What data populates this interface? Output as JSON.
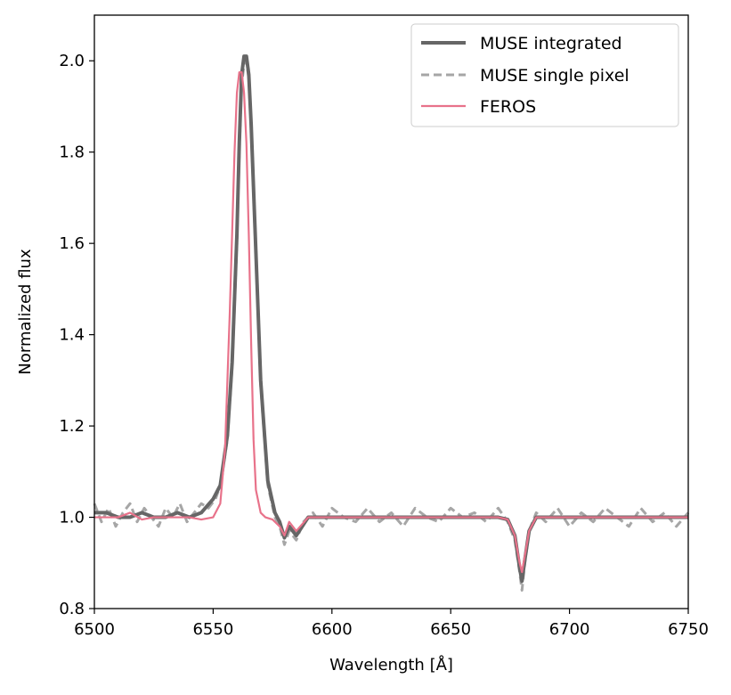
{
  "chart_data": {
    "type": "line",
    "xlabel": "Wavelength [Å]",
    "ylabel": "Normalized flux",
    "xlim": [
      6500,
      6750
    ],
    "ylim": [
      0.8,
      2.1
    ],
    "xticks": [
      6500,
      6550,
      6600,
      6650,
      6700,
      6750
    ],
    "yticks": [
      0.8,
      1.0,
      1.2,
      1.4,
      1.6,
      1.8,
      2.0
    ],
    "xtick_labels": [
      "6500",
      "6550",
      "6600",
      "6650",
      "6700",
      "6750"
    ],
    "ytick_labels": [
      "0.8",
      "1.0",
      "1.2",
      "1.4",
      "1.6",
      "1.8",
      "2.0"
    ],
    "grid": false,
    "legend_position": "upper right",
    "series": [
      {
        "name": "MUSE integrated",
        "color": "#666666",
        "style": "solid",
        "x": [
          6500,
          6505,
          6510,
          6515,
          6520,
          6525,
          6530,
          6535,
          6540,
          6545,
          6550,
          6553,
          6556,
          6558,
          6560,
          6561,
          6562,
          6563,
          6564,
          6565,
          6566,
          6568,
          6570,
          6573,
          6576,
          6578,
          6580,
          6582,
          6585,
          6590,
          6600,
          6610,
          6620,
          6630,
          6640,
          6650,
          6660,
          6670,
          6674,
          6677,
          6679,
          6680,
          6681,
          6683,
          6686,
          6690,
          6700,
          6710,
          6720,
          6730,
          6740,
          6750
        ],
        "y": [
          1.01,
          1.01,
          1.0,
          1.0,
          1.01,
          1.0,
          1.0,
          1.01,
          1.0,
          1.01,
          1.04,
          1.07,
          1.18,
          1.34,
          1.62,
          1.82,
          1.97,
          2.01,
          2.01,
          1.97,
          1.86,
          1.58,
          1.3,
          1.08,
          1.01,
          0.99,
          0.955,
          0.98,
          0.96,
          1.0,
          1.0,
          1.0,
          1.0,
          1.0,
          1.0,
          1.0,
          1.0,
          1.0,
          0.995,
          0.96,
          0.89,
          0.86,
          0.9,
          0.97,
          1.0,
          1.0,
          1.0,
          1.0,
          1.0,
          1.0,
          1.0,
          1.0
        ]
      },
      {
        "name": "MUSE single pixel",
        "color": "#a6a6a6",
        "style": "dashed",
        "x": [
          6500,
          6503,
          6506,
          6509,
          6512,
          6515,
          6518,
          6521,
          6524,
          6527,
          6530,
          6533,
          6536,
          6539,
          6542,
          6545,
          6548,
          6551,
          6553,
          6556,
          6558,
          6560,
          6561,
          6562,
          6563,
          6564,
          6565,
          6566,
          6568,
          6570,
          6573,
          6576,
          6578,
          6580,
          6582,
          6585,
          6588,
          6592,
          6596,
          6600,
          6605,
          6610,
          6615,
          6620,
          6625,
          6630,
          6635,
          6640,
          6645,
          6650,
          6655,
          6660,
          6665,
          6670,
          6674,
          6677,
          6679,
          6680,
          6681,
          6683,
          6686,
          6690,
          6695,
          6700,
          6705,
          6710,
          6715,
          6720,
          6725,
          6730,
          6735,
          6740,
          6745,
          6750
        ],
        "y": [
          1.03,
          0.99,
          1.02,
          0.98,
          1.01,
          1.03,
          0.99,
          1.02,
          1.0,
          0.98,
          1.02,
          1.0,
          1.03,
          0.99,
          1.01,
          1.03,
          1.02,
          1.04,
          1.07,
          1.17,
          1.33,
          1.6,
          1.8,
          1.95,
          1.99,
          2.0,
          1.96,
          1.85,
          1.57,
          1.29,
          1.07,
          1.0,
          0.98,
          0.94,
          0.97,
          0.95,
          0.99,
          1.01,
          0.98,
          1.02,
          1.0,
          0.99,
          1.02,
          0.99,
          1.01,
          0.98,
          1.02,
          1.0,
          0.99,
          1.02,
          1.0,
          1.01,
          0.99,
          1.02,
          0.99,
          0.95,
          0.88,
          0.84,
          0.89,
          0.97,
          1.01,
          0.99,
          1.02,
          0.98,
          1.01,
          0.99,
          1.02,
          1.0,
          0.98,
          1.02,
          0.99,
          1.01,
          0.98,
          1.01
        ]
      },
      {
        "name": "FEROS",
        "color": "#e8728a",
        "style": "solid",
        "x": [
          6500,
          6505,
          6510,
          6515,
          6520,
          6525,
          6530,
          6535,
          6540,
          6545,
          6550,
          6553,
          6555,
          6557,
          6559,
          6560,
          6561,
          6562,
          6563,
          6564,
          6565,
          6566,
          6567,
          6568,
          6570,
          6572,
          6575,
          6578,
          6580,
          6582,
          6585,
          6590,
          6600,
          6610,
          6620,
          6630,
          6640,
          6650,
          6660,
          6670,
          6674,
          6677,
          6679,
          6680,
          6681,
          6683,
          6686,
          6690,
          6700,
          6710,
          6720,
          6730,
          6740,
          6750
        ],
        "y": [
          1.0,
          1.0,
          1.0,
          1.01,
          0.995,
          1.0,
          1.0,
          1.0,
          1.0,
          0.995,
          1.0,
          1.03,
          1.15,
          1.45,
          1.8,
          1.93,
          1.975,
          1.975,
          1.93,
          1.82,
          1.62,
          1.38,
          1.17,
          1.06,
          1.01,
          1.0,
          0.995,
          0.98,
          0.96,
          0.99,
          0.97,
          1.0,
          1.0,
          1.0,
          1.0,
          1.0,
          1.0,
          1.0,
          1.0,
          1.0,
          0.995,
          0.96,
          0.9,
          0.88,
          0.91,
          0.97,
          1.0,
          1.0,
          1.0,
          1.0,
          1.0,
          1.0,
          1.0,
          1.0
        ]
      }
    ]
  }
}
